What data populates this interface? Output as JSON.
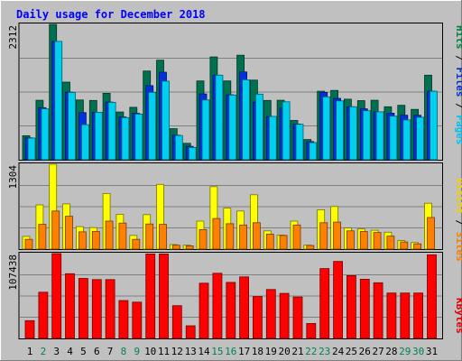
{
  "chart_data": {
    "type": "bar",
    "title": "Daily usage for December 2018",
    "categories": [
      "1",
      "2",
      "3",
      "4",
      "5",
      "6",
      "7",
      "8",
      "9",
      "10",
      "11",
      "12",
      "13",
      "14",
      "15",
      "16",
      "17",
      "18",
      "19",
      "20",
      "21",
      "22",
      "23",
      "24",
      "25",
      "26",
      "27",
      "28",
      "29",
      "30",
      "31"
    ],
    "weekend_days": [
      "2",
      "8",
      "9",
      "15",
      "16",
      "22",
      "23",
      "29",
      "30"
    ],
    "panels": [
      {
        "id": "top",
        "ymax_label": "2312",
        "ymax": 2312,
        "axis_labels": [
          "Pages",
          "Files",
          "Hits"
        ],
        "axis_label_colors": [
          "#00c0f0",
          "#0030c0",
          "#008040"
        ],
        "series": [
          {
            "name": "Hits",
            "color": "#007050",
            "values": [
              410,
              1015,
              2312,
              1325,
              1020,
              1013,
              1135,
              815,
              895,
              1515,
              1700,
              530,
              280,
              1345,
              1755,
              1346,
              1785,
              1360,
              1012,
              1015,
              670,
              345,
              1170,
              1183,
              1035,
              1010,
              1015,
              905,
              930,
              860,
              1445
            ]
          },
          {
            "name": "Files",
            "color": "#0030e0",
            "values": [
              375,
              890,
              2020,
              1155,
              805,
              810,
              985,
              730,
              792,
              1265,
              1495,
              420,
              230,
              1124,
              1445,
              1110,
              1500,
              985,
              737,
              880,
              610,
              310,
              1150,
              1048,
              905,
              870,
              818,
              795,
              760,
              760,
              1172
            ]
          },
          {
            "name": "Pages",
            "color": "#00d0f0",
            "values": [
              370,
              870,
              2020,
              1150,
              600,
              810,
              980,
              720,
              780,
              1150,
              1342,
              415,
              210,
              1020,
              1445,
              1105,
              1365,
              1120,
              740,
              990,
              605,
              293,
              1075,
              1005,
              905,
              837,
              818,
              745,
              680,
              726,
              1170
            ]
          }
        ]
      },
      {
        "id": "middle",
        "ymax_label": "1304",
        "ymax": 1304,
        "axis_labels": [
          "Sites",
          "Visits"
        ],
        "axis_label_colors": [
          "#f08000",
          "#f0d000"
        ],
        "series": [
          {
            "name": "Visits",
            "color": "#ffff00",
            "values": [
              195,
              680,
              1304,
              695,
              345,
              330,
              855,
              535,
              210,
              530,
              995,
              70,
              60,
              430,
              960,
              630,
              585,
              835,
              280,
              215,
              430,
              60,
              605,
              655,
              325,
              310,
              290,
              260,
              130,
              100,
              705
            ]
          },
          {
            "name": "Sites",
            "color": "#ff8000",
            "values": [
              150,
              380,
              585,
              505,
              265,
              270,
              430,
              400,
              150,
              385,
              380,
              60,
              50,
              300,
              470,
              390,
              370,
              405,
              230,
              210,
              370,
              55,
              405,
              415,
              280,
              270,
              255,
              200,
              110,
              80,
              485
            ]
          }
        ]
      },
      {
        "id": "bottom",
        "ymax_label": "107438",
        "ymax": 107438,
        "axis_labels": [
          "KBytes"
        ],
        "axis_label_colors": [
          "#e00000"
        ],
        "series": [
          {
            "name": "KBytes",
            "color": "#ff0000",
            "values": [
              22500,
              58500,
              107438,
              82000,
              76000,
              74500,
              74500,
              48000,
              46000,
              107000,
              107000,
              41500,
              16000,
              70000,
              82500,
              71000,
              78000,
              53000,
              62000,
              57000,
              52500,
              19000,
              88500,
              97500,
              79500,
              75000,
              70500,
              57500,
              57500,
              57500,
              106000
            ]
          }
        ]
      }
    ]
  }
}
